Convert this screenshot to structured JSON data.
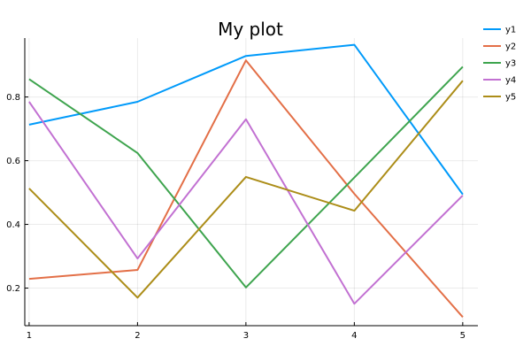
{
  "chart_data": {
    "type": "line",
    "title": "My plot",
    "xlabel": "",
    "ylabel": "",
    "xlim": [
      0.96,
      5.14
    ],
    "ylim": [
      0.082,
      0.985
    ],
    "xticks": [
      1,
      2,
      3,
      4,
      5
    ],
    "yticks": [
      0.2,
      0.4,
      0.6,
      0.8
    ],
    "ytick_labels": [
      "0.2",
      "0.4",
      "0.6",
      "0.8"
    ],
    "grid": true,
    "legend_position": "top-right",
    "x": [
      1,
      2,
      3,
      4,
      5
    ],
    "series": [
      {
        "name": "y1",
        "color": "#009AFA",
        "values": [
          0.713,
          0.785,
          0.929,
          0.964,
          0.494
        ]
      },
      {
        "name": "y2",
        "color": "#E36F47",
        "values": [
          0.229,
          0.257,
          0.915,
          0.496,
          0.109
        ]
      },
      {
        "name": "y3",
        "color": "#3EA44E",
        "values": [
          0.856,
          0.624,
          0.202,
          0.547,
          0.895
        ]
      },
      {
        "name": "y4",
        "color": "#C271D2",
        "values": [
          0.785,
          0.293,
          0.73,
          0.151,
          0.491
        ]
      },
      {
        "name": "y5",
        "color": "#AC8D18",
        "values": [
          0.513,
          0.17,
          0.549,
          0.443,
          0.851
        ]
      }
    ]
  }
}
